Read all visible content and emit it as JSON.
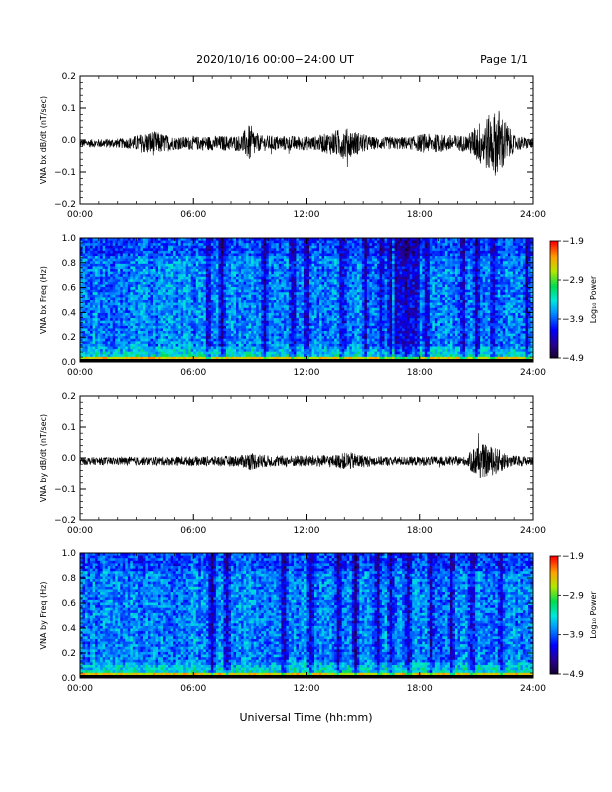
{
  "header": {
    "title": "2020/10/16  00:00−24:00 UT",
    "page": "Page 1/1"
  },
  "xaxis_label": "Universal Time (hh:mm)",
  "chart_data": [
    {
      "type": "line",
      "ylabel": "VNA bx dB/dt (nT/sec)",
      "xlim": [
        0,
        24
      ],
      "ylim": [
        -0.2,
        0.2
      ],
      "x_ticks": [
        "00:00",
        "06:00",
        "12:00",
        "18:00",
        "24:00"
      ],
      "y_ticks": [
        "0.2",
        "0.1",
        "0.0",
        "−0.1",
        "−0.2"
      ],
      "baseline": -0.01,
      "envelope": [
        {
          "t": 0,
          "amp": 0.012
        },
        {
          "t": 2.5,
          "amp": 0.016
        },
        {
          "t": 3.8,
          "amp": 0.04
        },
        {
          "t": 5,
          "amp": 0.02
        },
        {
          "t": 8.5,
          "amp": 0.025
        },
        {
          "t": 9.0,
          "amp": 0.06
        },
        {
          "t": 9.5,
          "amp": 0.025
        },
        {
          "t": 12.5,
          "amp": 0.022
        },
        {
          "t": 14.0,
          "amp": 0.05
        },
        {
          "t": 15.5,
          "amp": 0.02
        },
        {
          "t": 17.5,
          "amp": 0.02
        },
        {
          "t": 18.2,
          "amp": 0.03
        },
        {
          "t": 20.5,
          "amp": 0.025
        },
        {
          "t": 21.2,
          "amp": 0.07
        },
        {
          "t": 22.2,
          "amp": 0.11
        },
        {
          "t": 23,
          "amp": 0.025
        },
        {
          "t": 24,
          "amp": 0.015
        }
      ]
    },
    {
      "type": "heatmap",
      "ylabel": "VNA bx Freq (Hz)",
      "xlim": [
        0,
        24
      ],
      "ylim": [
        0,
        1.0
      ],
      "x_ticks": [
        "00:00",
        "06:00",
        "12:00",
        "18:00",
        "24:00"
      ],
      "y_ticks": [
        "1.0",
        "0.8",
        "0.6",
        "0.4",
        "0.2",
        "0.0"
      ],
      "colorbar": {
        "label": "Log₁₀ Power",
        "min": -4.9,
        "max": -1.9,
        "ticks": [
          "−1.9",
          "−2.9",
          "−3.9",
          "−4.9"
        ]
      },
      "dark_bands": [
        6.8,
        7.5,
        9.8,
        11.3,
        12.0,
        13.9,
        15.1,
        16.0,
        16.4,
        16.8,
        17.5,
        18.4,
        20.3,
        21.0,
        21.9,
        23.7
      ],
      "wide_dark": [
        [
          17.0,
          18.0
        ]
      ]
    },
    {
      "type": "line",
      "ylabel": "VNA by dB/dt (nT/sec)",
      "xlim": [
        0,
        24
      ],
      "ylim": [
        -0.2,
        0.2
      ],
      "x_ticks": [
        "00:00",
        "06:00",
        "12:00",
        "18:00",
        "24:00"
      ],
      "y_ticks": [
        "0.2",
        "0.1",
        "0.0",
        "−0.1",
        "−0.2"
      ],
      "baseline": -0.01,
      "envelope": [
        {
          "t": 0,
          "amp": 0.012
        },
        {
          "t": 6,
          "amp": 0.015
        },
        {
          "t": 8.5,
          "amp": 0.018
        },
        {
          "t": 9.0,
          "amp": 0.03
        },
        {
          "t": 10,
          "amp": 0.018
        },
        {
          "t": 13.5,
          "amp": 0.02
        },
        {
          "t": 14.2,
          "amp": 0.03
        },
        {
          "t": 15.5,
          "amp": 0.015
        },
        {
          "t": 20.5,
          "amp": 0.015
        },
        {
          "t": 21.0,
          "amp": 0.06
        },
        {
          "t": 22.0,
          "amp": 0.045
        },
        {
          "t": 22.8,
          "amp": 0.02
        },
        {
          "t": 24,
          "amp": 0.012
        }
      ]
    },
    {
      "type": "heatmap",
      "ylabel": "VNA by Freq (Hz)",
      "xlim": [
        0,
        24
      ],
      "ylim": [
        0,
        1.0
      ],
      "x_ticks": [
        "00:00",
        "06:00",
        "12:00",
        "18:00",
        "24:00"
      ],
      "y_ticks": [
        "1.0",
        "0.8",
        "0.6",
        "0.4",
        "0.2",
        "0.0"
      ],
      "colorbar": {
        "label": "Log₁₀ Power",
        "min": -4.9,
        "max": -1.9,
        "ticks": [
          "−1.9",
          "−2.9",
          "−3.9",
          "−4.9"
        ]
      },
      "dark_bands": [
        7.0,
        7.8,
        10.8,
        12.2,
        13.7,
        14.6,
        15.8,
        16.5,
        17.4,
        18.6,
        19.7,
        20.8,
        22.3
      ],
      "wide_dark": []
    }
  ]
}
